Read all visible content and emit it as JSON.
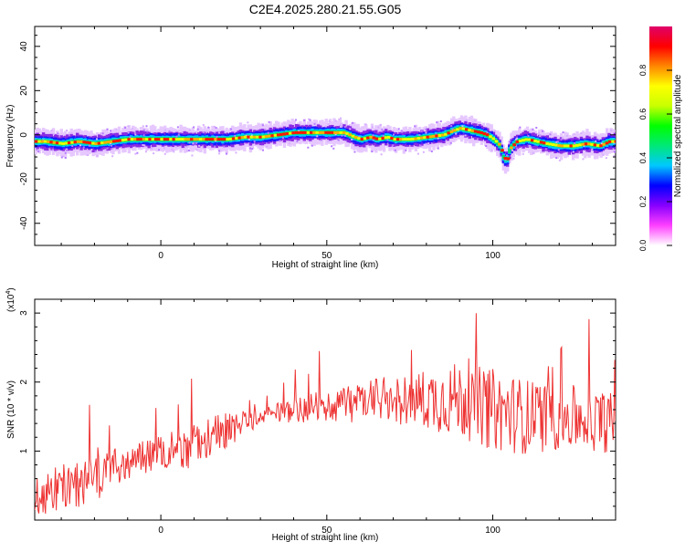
{
  "figure": {
    "title": "C2E4.2025.280.21.55.G05"
  },
  "chart_data": [
    {
      "type": "heatmap",
      "name": "spectrogram",
      "xlabel": "Height of straight line (km)",
      "ylabel": "Frequency (Hz)",
      "xlim": [
        -38,
        137
      ],
      "ylim": [
        -50,
        49
      ],
      "xticks": [
        "0",
        "50",
        "100"
      ],
      "yticks": [
        "-40",
        "-20",
        "0",
        "20",
        "40"
      ],
      "colorbar": {
        "label": "Normalized spectral amplitude",
        "range": [
          0,
          1
        ],
        "ticks": [
          "0.0",
          "0.2",
          "0.4",
          "0.6",
          "0.8"
        ],
        "colors": [
          "#ffffff",
          "#ff40ff",
          "#8800ff",
          "#0000ff",
          "#00c8ff",
          "#00e878",
          "#00ff00",
          "#c8ff00",
          "#ffff00",
          "#ff8800",
          "#ff0000",
          "#e0006a"
        ]
      },
      "ridge": {
        "x": [
          -38,
          -35,
          -30,
          -25,
          -20,
          -15,
          -10,
          -5,
          0,
          5,
          10,
          15,
          20,
          25,
          30,
          35,
          40,
          45,
          50,
          55,
          58,
          60,
          63,
          65,
          68,
          70,
          75,
          80,
          85,
          88,
          90,
          93,
          96,
          98,
          100,
          102,
          103,
          104,
          105,
          107,
          110,
          113,
          116,
          120,
          124,
          128,
          132,
          135,
          137
        ],
        "y": [
          -3,
          -3,
          -4,
          -3,
          -4,
          -3,
          -2,
          -2,
          -2,
          -2,
          -2,
          -2,
          -2,
          -1,
          -1,
          0,
          1,
          1,
          1,
          1,
          -1,
          -2,
          -1,
          -2,
          -1,
          -2,
          -2,
          -1,
          0,
          2,
          3,
          2,
          1,
          0,
          -2,
          -5,
          -10,
          -12,
          -6,
          -3,
          -2,
          -3,
          -4,
          -5,
          -5,
          -4,
          -5,
          -3,
          -3
        ]
      },
      "grid": false
    },
    {
      "type": "line",
      "name": "snr",
      "xlabel": "Height of straight line (km)",
      "ylabel": "SNR (10 * v/v)",
      "ymultiplier": "(x10",
      "ymultiplier_exp": "4",
      "ymultiplier_close": ")",
      "xlim": [
        -38,
        137
      ],
      "ylim": [
        0,
        3.2
      ],
      "xticks": [
        "0",
        "50",
        "100"
      ],
      "yticks": [
        "1",
        "2",
        "3"
      ],
      "color": "#ee3333",
      "envelope": {
        "x": [
          -38,
          -30,
          -20,
          -10,
          0,
          10,
          20,
          30,
          40,
          50,
          60,
          70,
          80,
          90,
          100,
          110,
          120,
          130,
          137
        ],
        "mean": [
          0.35,
          0.45,
          0.6,
          0.85,
          1.0,
          1.1,
          1.3,
          1.5,
          1.6,
          1.65,
          1.7,
          1.75,
          1.75,
          1.75,
          1.6,
          1.5,
          1.5,
          1.45,
          1.4
        ],
        "amp": [
          0.3,
          0.35,
          0.35,
          0.25,
          0.25,
          0.35,
          0.25,
          0.12,
          0.18,
          0.25,
          0.3,
          0.35,
          0.45,
          0.55,
          0.6,
          0.55,
          0.5,
          0.45,
          0.45
        ]
      },
      "grid": false
    }
  ]
}
